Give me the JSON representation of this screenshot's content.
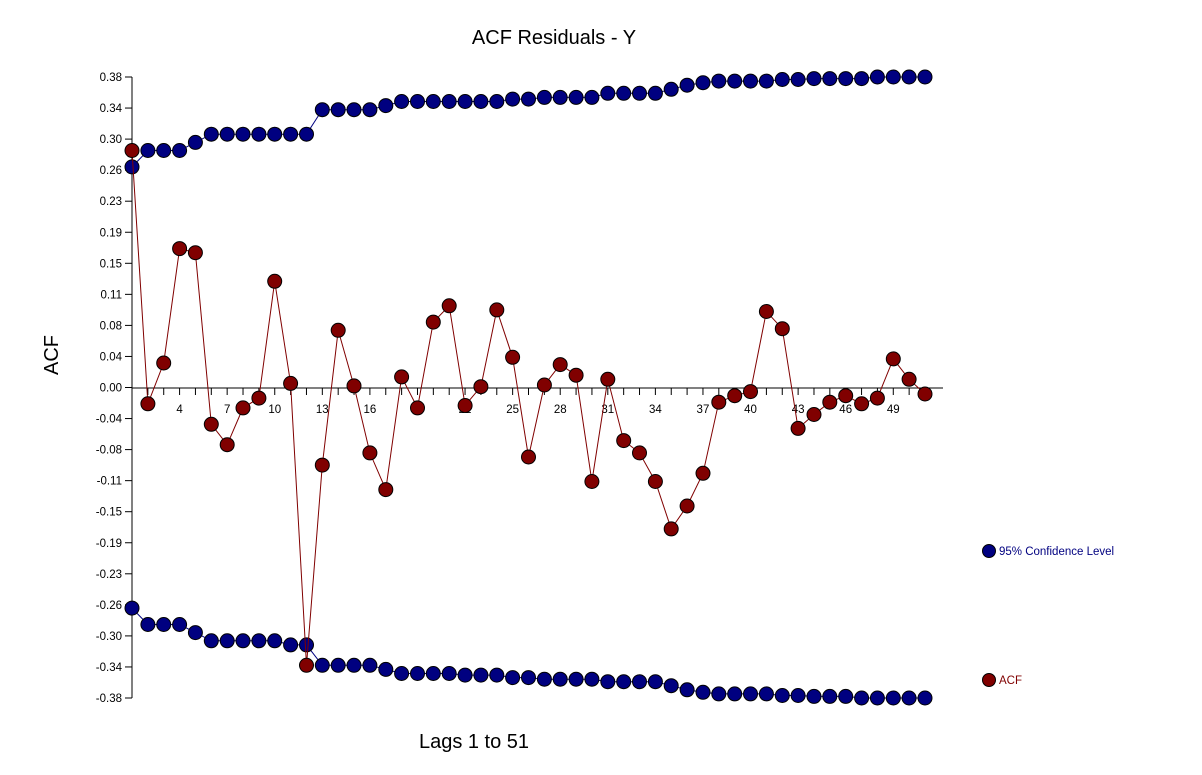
{
  "chart_data": {
    "type": "line",
    "title": "ACF Residuals - Y",
    "xlabel": "Lags  1 to 51",
    "ylabel": "ACF",
    "xlim": [
      1,
      51
    ],
    "ylim": [
      -0.38,
      0.38
    ],
    "y_ticks": [
      "0.38",
      "0.34",
      "0.30",
      "0.26",
      "0.23",
      "0.19",
      "0.15",
      "0.11",
      "0.08",
      "0.04",
      "0.00",
      "-0.04",
      "-0.08",
      "-0.11",
      "-0.15",
      "-0.19",
      "-0.23",
      "-0.26",
      "-0.30",
      "-0.34",
      "-0.38"
    ],
    "x_ticks": [
      "4",
      "7",
      "10",
      "13",
      "16",
      "19",
      "22",
      "25",
      "28",
      "31",
      "34",
      "37",
      "40",
      "43",
      "46",
      "49"
    ],
    "x": [
      1,
      2,
      3,
      4,
      5,
      6,
      7,
      8,
      9,
      10,
      11,
      12,
      13,
      14,
      15,
      16,
      17,
      18,
      19,
      20,
      21,
      22,
      23,
      24,
      25,
      26,
      27,
      28,
      29,
      30,
      31,
      32,
      33,
      34,
      35,
      36,
      37,
      38,
      39,
      40,
      41,
      42,
      43,
      44,
      45,
      46,
      47,
      48,
      49,
      50,
      51
    ],
    "series": [
      {
        "name": "95% Confidence Level",
        "color": "#000080",
        "upper": [
          0.27,
          0.29,
          0.29,
          0.29,
          0.3,
          0.31,
          0.31,
          0.31,
          0.31,
          0.31,
          0.31,
          0.31,
          0.34,
          0.34,
          0.34,
          0.34,
          0.345,
          0.35,
          0.35,
          0.35,
          0.35,
          0.35,
          0.35,
          0.35,
          0.353,
          0.353,
          0.355,
          0.355,
          0.355,
          0.355,
          0.36,
          0.36,
          0.36,
          0.36,
          0.365,
          0.37,
          0.373,
          0.375,
          0.375,
          0.375,
          0.375,
          0.377,
          0.377,
          0.378,
          0.378,
          0.378,
          0.378,
          0.38,
          0.38,
          0.38,
          0.38
        ],
        "lower": [
          -0.27,
          -0.29,
          -0.29,
          -0.29,
          -0.3,
          -0.31,
          -0.31,
          -0.31,
          -0.31,
          -0.31,
          -0.315,
          -0.315,
          -0.34,
          -0.34,
          -0.34,
          -0.34,
          -0.345,
          -0.35,
          -0.35,
          -0.35,
          -0.35,
          -0.352,
          -0.352,
          -0.352,
          -0.355,
          -0.355,
          -0.357,
          -0.357,
          -0.357,
          -0.357,
          -0.36,
          -0.36,
          -0.36,
          -0.36,
          -0.365,
          -0.37,
          -0.373,
          -0.375,
          -0.375,
          -0.375,
          -0.375,
          -0.377,
          -0.377,
          -0.378,
          -0.378,
          -0.378,
          -0.38,
          -0.38,
          -0.38,
          -0.38,
          -0.38
        ]
      },
      {
        "name": "ACF",
        "color": "#800000",
        "values": [
          0.29,
          -0.02,
          0.03,
          0.17,
          0.165,
          -0.045,
          -0.07,
          -0.025,
          -0.013,
          0.13,
          0.005,
          -0.34,
          -0.095,
          0.07,
          0.002,
          -0.08,
          -0.125,
          0.013,
          -0.025,
          0.08,
          0.1,
          -0.022,
          0.001,
          0.095,
          0.037,
          -0.085,
          0.003,
          0.028,
          0.015,
          -0.115,
          0.01,
          -0.065,
          -0.08,
          -0.115,
          -0.173,
          -0.145,
          -0.105,
          -0.018,
          -0.01,
          -0.005,
          0.093,
          0.072,
          -0.05,
          -0.033,
          -0.018,
          -0.01,
          -0.02,
          -0.013,
          0.035,
          0.01,
          -0.008
        ]
      }
    ],
    "legend_position": "right"
  }
}
